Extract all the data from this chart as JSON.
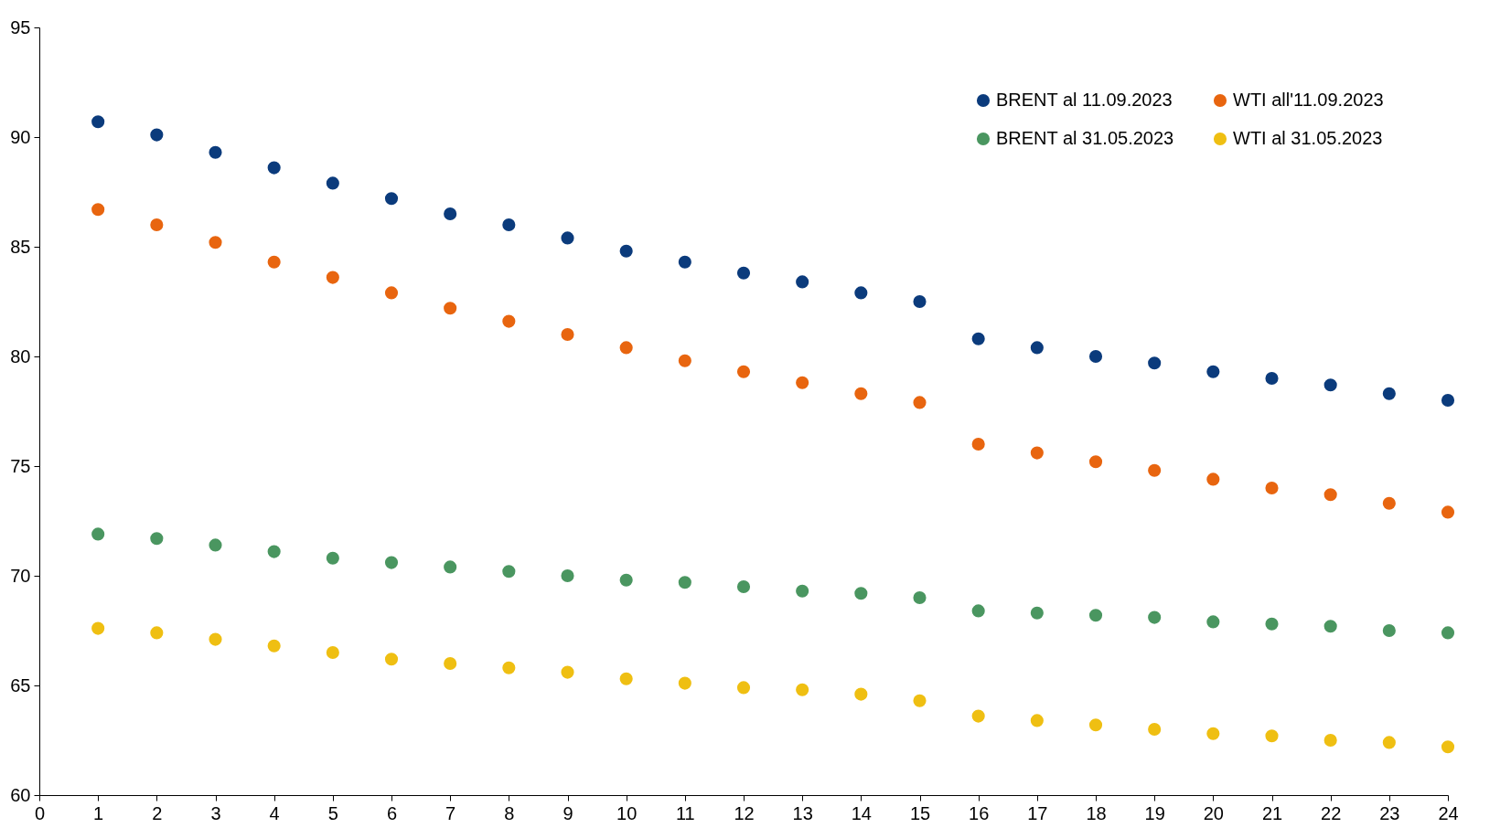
{
  "chart_data": {
    "type": "scatter",
    "marker": "circle",
    "legend": "top right",
    "x": [
      1,
      2,
      3,
      4,
      5,
      6,
      7,
      8,
      9,
      10,
      11,
      12,
      13,
      14,
      15,
      16,
      17,
      18,
      19,
      20,
      21,
      22,
      23,
      24
    ],
    "xlim": [
      0,
      24
    ],
    "xticks": [
      0,
      1,
      2,
      3,
      4,
      5,
      6,
      7,
      8,
      9,
      10,
      11,
      12,
      13,
      14,
      15,
      16,
      17,
      18,
      19,
      20,
      21,
      22,
      23,
      24
    ],
    "ylim": [
      60,
      95
    ],
    "yticks": [
      60,
      65,
      70,
      75,
      80,
      85,
      90,
      95
    ],
    "series": [
      {
        "name": "BRENT al 11.09.2023",
        "color": "#0b3b7c",
        "values": [
          90.7,
          90.1,
          89.3,
          88.6,
          87.9,
          87.2,
          86.5,
          86.0,
          85.4,
          84.8,
          84.3,
          83.8,
          83.4,
          82.9,
          82.5,
          80.8,
          80.4,
          80.0,
          79.7,
          79.3,
          79.0,
          78.7,
          78.3,
          78.0
        ]
      },
      {
        "name": "WTI all'11.09.2023",
        "color": "#e8650f",
        "values": [
          86.7,
          86.0,
          85.2,
          84.3,
          83.6,
          82.9,
          82.2,
          81.6,
          81.0,
          80.4,
          79.8,
          79.3,
          78.8,
          78.3,
          77.9,
          76.0,
          75.6,
          75.2,
          74.8,
          74.4,
          74.0,
          73.7,
          73.3,
          72.9
        ]
      },
      {
        "name": "BRENT al 31.05.2023",
        "color": "#4a9660",
        "values": [
          71.9,
          71.7,
          71.4,
          71.1,
          70.8,
          70.6,
          70.4,
          70.2,
          70.0,
          69.8,
          69.7,
          69.5,
          69.3,
          69.2,
          69.0,
          68.4,
          68.3,
          68.2,
          68.1,
          67.9,
          67.8,
          67.7,
          67.5,
          67.4
        ]
      },
      {
        "name": "WTI al 31.05.2023",
        "color": "#efbf12",
        "values": [
          67.6,
          67.4,
          67.1,
          66.8,
          66.5,
          66.2,
          66.0,
          65.8,
          65.6,
          65.3,
          65.1,
          64.9,
          64.8,
          64.6,
          64.3,
          63.6,
          63.4,
          63.2,
          63.0,
          62.8,
          62.7,
          62.5,
          62.4,
          62.2
        ]
      }
    ]
  }
}
